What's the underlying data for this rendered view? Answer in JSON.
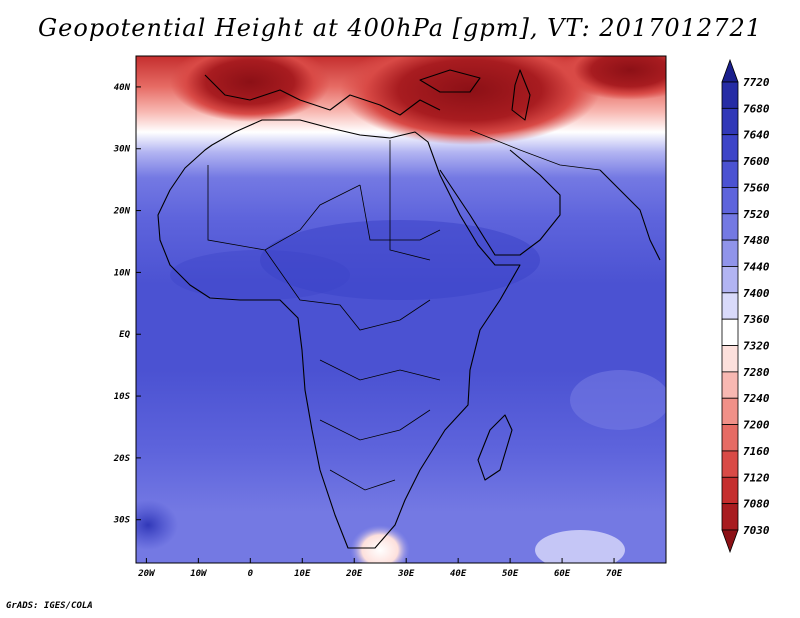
{
  "title": "Geopotential Height at 400hPa [gpm], VT: 2017012721",
  "credit": "GrADS: IGES/COLA",
  "map": {
    "lon_range": [
      -22,
      80
    ],
    "lat_range": [
      -37,
      45
    ],
    "lon_ticks": [
      "20W",
      "10W",
      "0",
      "10E",
      "20E",
      "30E",
      "40E",
      "50E",
      "60E",
      "70E"
    ],
    "lon_tick_values": [
      -20,
      -10,
      0,
      10,
      20,
      30,
      40,
      50,
      60,
      70
    ],
    "lat_ticks": [
      "40N",
      "30N",
      "20N",
      "10N",
      "EQ",
      "10S",
      "20S",
      "30S"
    ],
    "lat_tick_values": [
      40,
      30,
      20,
      10,
      0,
      -10,
      -20,
      -30
    ]
  },
  "colorbar": {
    "levels": [
      "7720",
      "7680",
      "7640",
      "7600",
      "7560",
      "7520",
      "7480",
      "7440",
      "7400",
      "7360",
      "7320",
      "7280",
      "7240",
      "7200",
      "7160",
      "7120",
      "7080",
      "7030"
    ],
    "colors": [
      "#1a1f8c",
      "#262ca5",
      "#3138b8",
      "#3d44c8",
      "#4b52d2",
      "#5e64dc",
      "#7479e3",
      "#9094ea",
      "#b2b4f2",
      "#d9dafa",
      "#ffffff",
      "#fde0dc",
      "#f8b8b2",
      "#f09088",
      "#e66b64",
      "#d94a46",
      "#c52e2e",
      "#a81c20",
      "#8c1016"
    ]
  }
}
